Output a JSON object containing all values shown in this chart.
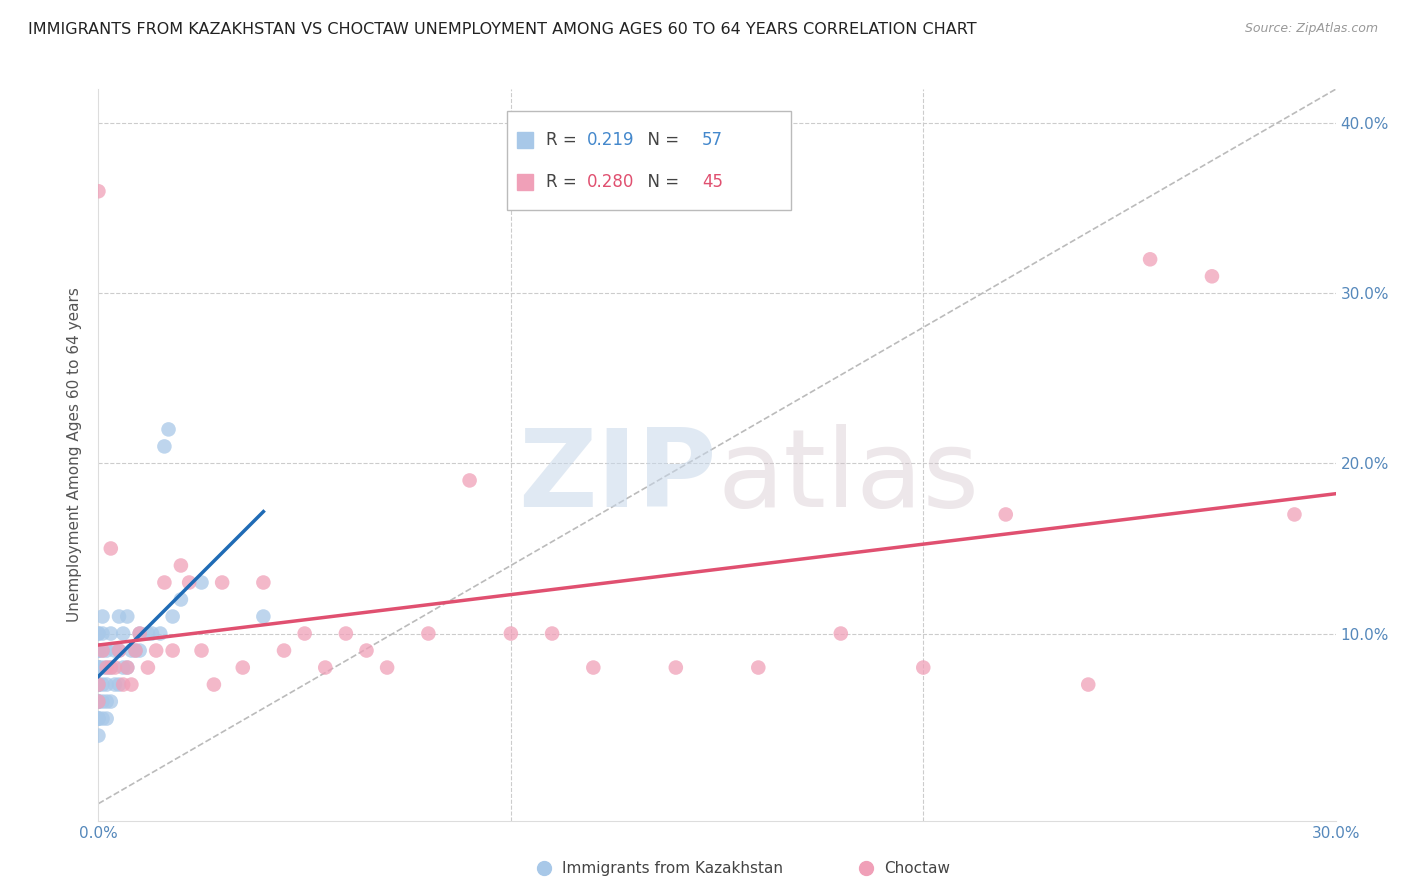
{
  "title": "IMMIGRANTS FROM KAZAKHSTAN VS CHOCTAW UNEMPLOYMENT AMONG AGES 60 TO 64 YEARS CORRELATION CHART",
  "source": "Source: ZipAtlas.com",
  "ylabel": "Unemployment Among Ages 60 to 64 years",
  "xlim": [
    0.0,
    0.3
  ],
  "ylim": [
    -0.01,
    0.42
  ],
  "yticks": [
    0.1,
    0.2,
    0.3,
    0.4
  ],
  "ytick_labels": [
    "10.0%",
    "20.0%",
    "30.0%",
    "40.0%"
  ],
  "xticks": [
    0.0,
    0.1,
    0.2,
    0.3
  ],
  "xtick_labels": [
    "0.0%",
    "",
    "",
    "30.0%"
  ],
  "legend_R1": "0.219",
  "legend_N1": "57",
  "legend_R2": "0.280",
  "legend_N2": "45",
  "color_kaz": "#a8c8e8",
  "color_choctaw": "#f0a0b8",
  "color_kaz_line": "#1f6bb5",
  "color_choctaw_line": "#e05070",
  "color_diagonal": "#bbbbbb",
  "kaz_x": [
    0.0,
    0.0,
    0.0,
    0.0,
    0.0,
    0.0,
    0.0,
    0.0,
    0.0,
    0.0,
    0.0,
    0.0,
    0.0,
    0.0,
    0.0,
    0.0,
    0.0,
    0.0,
    0.0,
    0.0,
    0.001,
    0.001,
    0.001,
    0.001,
    0.001,
    0.001,
    0.001,
    0.002,
    0.002,
    0.002,
    0.002,
    0.002,
    0.003,
    0.003,
    0.003,
    0.004,
    0.004,
    0.005,
    0.005,
    0.005,
    0.006,
    0.006,
    0.007,
    0.007,
    0.008,
    0.009,
    0.01,
    0.01,
    0.012,
    0.013,
    0.015,
    0.016,
    0.017,
    0.018,
    0.02,
    0.025,
    0.04
  ],
  "kaz_y": [
    0.04,
    0.05,
    0.05,
    0.05,
    0.06,
    0.06,
    0.06,
    0.07,
    0.07,
    0.07,
    0.07,
    0.08,
    0.08,
    0.08,
    0.08,
    0.09,
    0.09,
    0.09,
    0.1,
    0.1,
    0.05,
    0.06,
    0.07,
    0.08,
    0.09,
    0.1,
    0.11,
    0.05,
    0.06,
    0.07,
    0.08,
    0.09,
    0.06,
    0.08,
    0.1,
    0.07,
    0.09,
    0.07,
    0.09,
    0.11,
    0.08,
    0.1,
    0.08,
    0.11,
    0.09,
    0.09,
    0.09,
    0.1,
    0.1,
    0.1,
    0.1,
    0.21,
    0.22,
    0.11,
    0.12,
    0.13,
    0.11
  ],
  "choctaw_x": [
    0.0,
    0.0,
    0.0,
    0.001,
    0.002,
    0.003,
    0.003,
    0.004,
    0.005,
    0.006,
    0.007,
    0.008,
    0.009,
    0.01,
    0.012,
    0.014,
    0.016,
    0.018,
    0.02,
    0.022,
    0.025,
    0.028,
    0.03,
    0.035,
    0.04,
    0.045,
    0.05,
    0.055,
    0.06,
    0.065,
    0.07,
    0.08,
    0.09,
    0.1,
    0.11,
    0.12,
    0.14,
    0.16,
    0.18,
    0.2,
    0.22,
    0.24,
    0.255,
    0.27,
    0.29
  ],
  "choctaw_y": [
    0.06,
    0.07,
    0.36,
    0.09,
    0.08,
    0.08,
    0.15,
    0.08,
    0.09,
    0.07,
    0.08,
    0.07,
    0.09,
    0.1,
    0.08,
    0.09,
    0.13,
    0.09,
    0.14,
    0.13,
    0.09,
    0.07,
    0.13,
    0.08,
    0.13,
    0.09,
    0.1,
    0.08,
    0.1,
    0.09,
    0.08,
    0.1,
    0.19,
    0.1,
    0.1,
    0.08,
    0.08,
    0.08,
    0.1,
    0.08,
    0.17,
    0.07,
    0.32,
    0.31,
    0.17
  ],
  "watermark_zip": "ZIP",
  "watermark_atlas": "atlas",
  "background_color": "#ffffff"
}
